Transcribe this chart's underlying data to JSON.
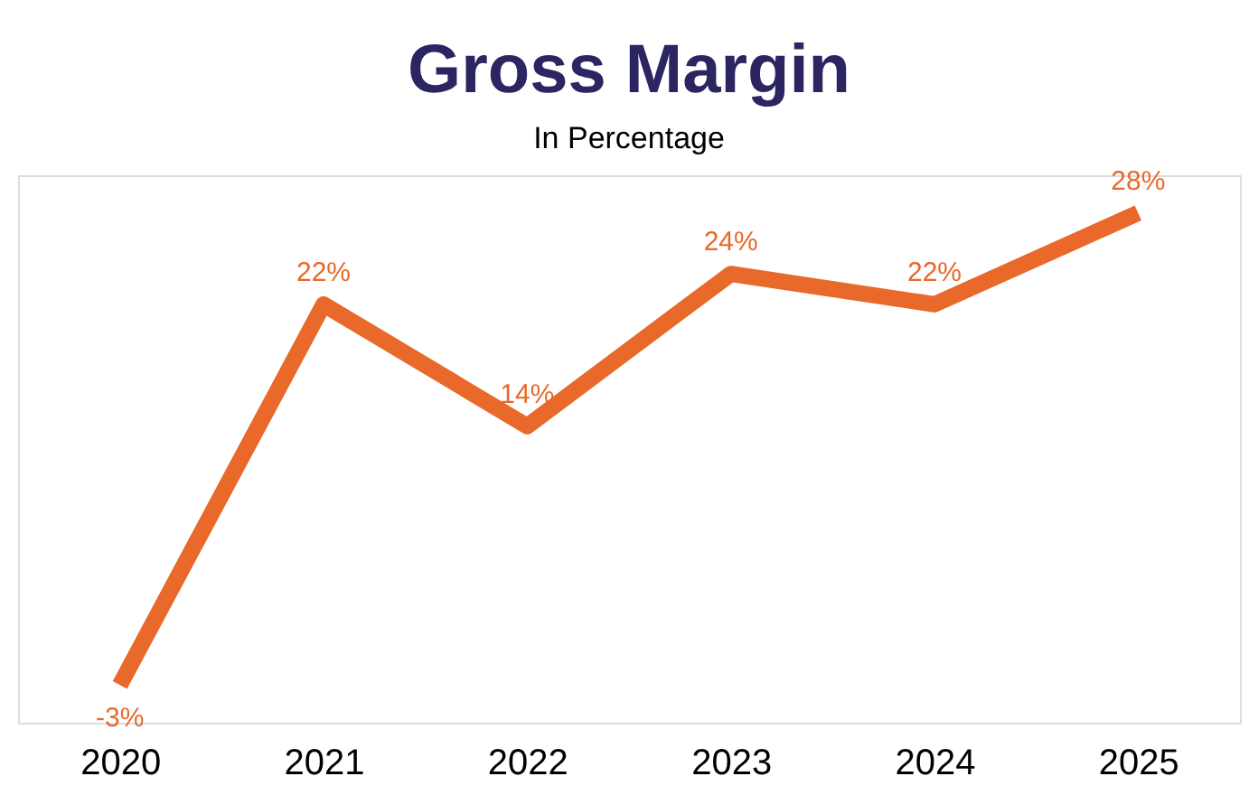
{
  "chart_data": {
    "type": "line",
    "title": "Gross Margin",
    "subtitle": "In  Percentage",
    "categories": [
      "2020",
      "2021",
      "2022",
      "2023",
      "2024",
      "2025"
    ],
    "series": [
      {
        "color": "#e8692a",
        "values": [
          -3,
          22,
          14,
          24,
          22,
          28
        ],
        "value_labels": [
          "-3%",
          "22%",
          "14%",
          "24%",
          "22%",
          "28%"
        ]
      }
    ],
    "grid": false,
    "line_style": "solid",
    "tick_labels": "x"
  }
}
